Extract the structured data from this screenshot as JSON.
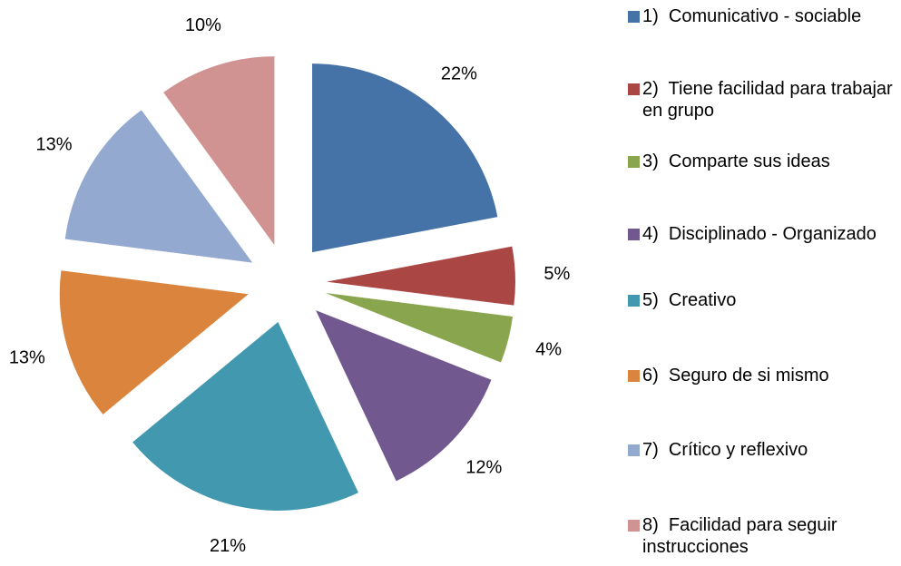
{
  "chart_data": {
    "type": "pie",
    "categories": [
      "1)  Comunicativo - sociable",
      "2)  Tiene facilidad para trabajar en grupo",
      "3)  Comparte sus ideas",
      "4)  Disciplinado - Organizado",
      "5)  Creativo",
      "6)  Seguro de si mismo",
      "7)  Crítico y reflexivo",
      "8)  Facilidad para seguir instrucciones"
    ],
    "values": [
      22,
      5,
      4,
      12,
      21,
      13,
      13,
      10
    ],
    "value_labels": [
      "22%",
      "5%",
      "4%",
      "12%",
      "21%",
      "13%",
      "13%",
      "10%"
    ],
    "colors": [
      "#4572a7",
      "#aa4643",
      "#89a54e",
      "#71588f",
      "#4198af",
      "#db843d",
      "#93a9cf",
      "#d19392"
    ],
    "legend": "right"
  }
}
